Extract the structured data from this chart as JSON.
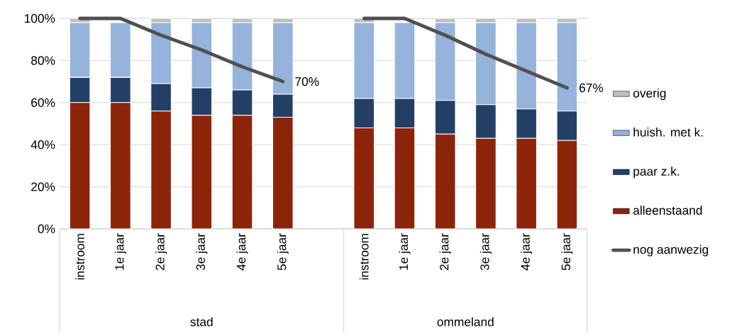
{
  "chart_data": {
    "type": "bar",
    "stacked": true,
    "categories": [
      "instroom",
      "1e jaar",
      "2e jaar",
      "3e jaar",
      "4e jaar",
      "5e jaar",
      null,
      "instroom",
      "1e jaar",
      "2e jaar",
      "3e jaar",
      "4e jaar",
      "5e jaar"
    ],
    "series": [
      {
        "name": "alleenstaand",
        "color": "#8b2409",
        "values": [
          60,
          60,
          56,
          54,
          54,
          53,
          null,
          48,
          48,
          45,
          43,
          43,
          42
        ]
      },
      {
        "name": "paar z.k.",
        "color": "#243f66",
        "values": [
          12,
          12,
          13,
          13,
          12,
          11,
          null,
          14,
          14,
          16,
          16,
          14,
          14
        ]
      },
      {
        "name": "huish. met k.",
        "color": "#95b3db",
        "values": [
          26,
          26,
          29,
          31,
          32,
          34,
          null,
          36,
          36,
          37,
          39,
          41,
          42
        ]
      },
      {
        "name": "overig",
        "color": "#bfbfbf",
        "values": [
          2,
          null,
          2,
          2,
          2,
          2,
          null,
          2,
          null,
          2,
          2,
          2,
          2
        ]
      },
      {
        "name": "nog aanwezig",
        "type": "line",
        "color": "#505050",
        "marker": "none",
        "line_style": "solid",
        "values": [
          100,
          100,
          92,
          85,
          77,
          70,
          null,
          100,
          100,
          92,
          83,
          75,
          67
        ],
        "value_labels": [
          null,
          null,
          null,
          null,
          null,
          "70%",
          null,
          null,
          null,
          null,
          null,
          null,
          "67%"
        ]
      }
    ],
    "ylim": [
      0,
      100
    ],
    "yticks": [
      {
        "value": 0,
        "label": "0%"
      },
      {
        "value": 20,
        "label": "20%"
      },
      {
        "value": 40,
        "label": "40%"
      },
      {
        "value": 60,
        "label": "60%"
      },
      {
        "value": 80,
        "label": "80%"
      },
      {
        "value": 100,
        "label": "100%"
      }
    ],
    "grid": "y",
    "legend": "right",
    "annotations": [
      "stad",
      "ommeland"
    ]
  }
}
